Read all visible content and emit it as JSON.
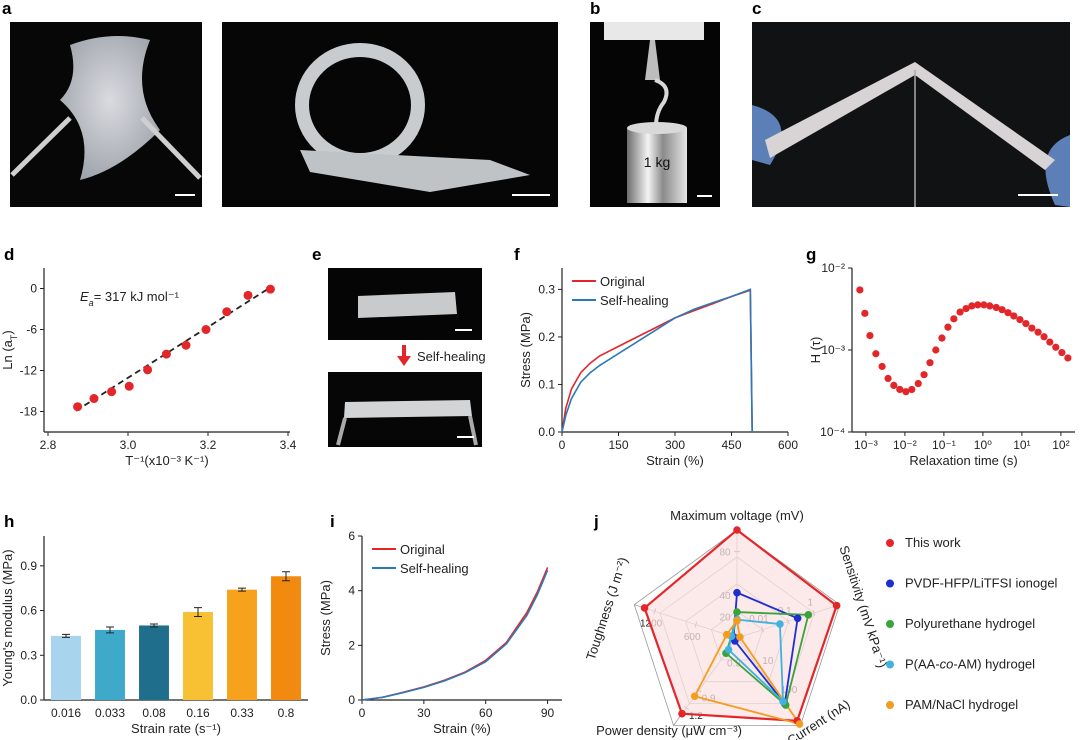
{
  "photos": [
    {
      "panel": "a"
    },
    {
      "panel": "b",
      "caption": "1 kg"
    },
    {
      "panel": "c"
    },
    {
      "panel": "e",
      "caption": "Self-healing"
    }
  ],
  "chart_data": [
    {
      "type": "scatter",
      "panel": "d",
      "x_label": "T⁻¹(x10⁻³ K⁻¹)",
      "y_label": [
        "Ln (a",
        "T",
        ")"
      ],
      "annotation": [
        "E",
        "a",
        "= 317 kJ mol⁻¹"
      ],
      "x": [
        2.874,
        2.915,
        2.959,
        3.003,
        3.049,
        3.096,
        3.145,
        3.195,
        3.247,
        3.3,
        3.356
      ],
      "values": [
        -17.3,
        -16.1,
        -15.1,
        -14.3,
        -11.9,
        -9.6,
        -8.3,
        -6.0,
        -3.4,
        -1.0,
        -0.1
      ],
      "color": "#e3262a",
      "fit": {
        "x": [
          2.87,
          3.36
        ],
        "values": [
          -17.9,
          0.3
        ],
        "color": "#222"
      },
      "xlim": [
        2.79,
        3.405
      ],
      "ylim": [
        -21,
        3
      ],
      "xticks": [
        2.8,
        {
          "value": 3,
          "label": "3.0"
        },
        3.2,
        3.4
      ],
      "yticks": [
        0,
        -6,
        -12,
        -18
      ]
    },
    {
      "type": "line",
      "panel": "f",
      "x_label": "Strain (%)",
      "y_label": "Stress (MPa)",
      "x": [
        0,
        10,
        25,
        50,
        75,
        100,
        150,
        200,
        250,
        300,
        350,
        400,
        450,
        500,
        505
      ],
      "series": [
        {
          "name": "Original",
          "color": "#e3262a",
          "values": [
            0,
            0.05,
            0.09,
            0.125,
            0.145,
            0.16,
            0.18,
            0.2,
            0.22,
            0.24,
            0.255,
            0.27,
            0.285,
            0.298,
            0
          ]
        },
        {
          "name": "Self-healing",
          "color": "#2a7ab8",
          "values": [
            0,
            0.035,
            0.07,
            0.105,
            0.125,
            0.14,
            0.165,
            0.19,
            0.215,
            0.24,
            0.258,
            0.272,
            0.285,
            0.3,
            0
          ]
        }
      ],
      "xlim": [
        0,
        600
      ],
      "ylim": [
        0,
        0.345
      ],
      "xticks": [
        0,
        150,
        300,
        450,
        600
      ],
      "yticks": [
        {
          "value": 0,
          "label": "0.0"
        },
        0.1,
        0.2,
        0.3
      ]
    },
    {
      "type": "scatter",
      "panel": "g",
      "x_label": "Relaxation time (s)",
      "y_label": "H (τ)",
      "x": [
        0.0007,
        0.00094,
        0.00127,
        0.0018,
        0.0026,
        0.0037,
        0.0052,
        0.0074,
        0.0106,
        0.015,
        0.022,
        0.031,
        0.044,
        0.062,
        0.089,
        0.127,
        0.18,
        0.26,
        0.37,
        0.52,
        0.74,
        1.06,
        1.5,
        2.2,
        3.1,
        4.4,
        6.2,
        8.9,
        12.7,
        18,
        26,
        37,
        52,
        74,
        106,
        151
      ],
      "values": [
        0.0054,
        0.0028,
        0.0015,
        0.0009,
        0.00063,
        0.00045,
        0.00037,
        0.00033,
        0.00031,
        0.00033,
        0.00039,
        0.0005,
        0.0007,
        0.001,
        0.0014,
        0.0019,
        0.0024,
        0.0029,
        0.0032,
        0.00345,
        0.00355,
        0.00355,
        0.00345,
        0.0033,
        0.0031,
        0.00285,
        0.0026,
        0.00235,
        0.0021,
        0.00185,
        0.00165,
        0.00145,
        0.00125,
        0.00108,
        0.00093,
        0.0008
      ],
      "color": "#e3262a",
      "xscale": "log",
      "yscale": "log",
      "xlim": [
        0.00044,
        230
      ],
      "ylim": [
        0.0001,
        0.01
      ],
      "xticks": [
        {
          "value": 0.001,
          "label": "10⁻³"
        },
        {
          "value": 0.01,
          "label": "10⁻²"
        },
        {
          "value": 0.1,
          "label": "10⁻¹"
        },
        {
          "value": 1,
          "label": "10⁰"
        },
        {
          "value": 10,
          "label": "10¹"
        },
        {
          "value": 100,
          "label": "10²"
        }
      ],
      "yticks": [
        {
          "value": 0.0001,
          "label": "10⁻⁴"
        },
        {
          "value": 0.001,
          "label": "10⁻³"
        },
        {
          "value": 0.01,
          "label": "10⁻²"
        }
      ]
    },
    {
      "type": "bar",
      "panel": "h",
      "x_label": "Strain rate (s⁻¹)",
      "y_label": "Young's modulus (MPa)",
      "categories": [
        "0.016",
        "0.033",
        "0.08",
        "0.16",
        "0.33",
        "0.8"
      ],
      "values": [
        0.43,
        0.47,
        0.5,
        0.59,
        0.74,
        0.83
      ],
      "errors": [
        0.01,
        0.02,
        0.01,
        0.03,
        0.01,
        0.03
      ],
      "colors": [
        "#a8d4ee",
        "#3fa9c9",
        "#1f6e8c",
        "#f7c133",
        "#f7a21c",
        "#f28a0f"
      ],
      "ylim": [
        0,
        1.1
      ],
      "yticks": [
        {
          "value": 0,
          "label": "0.0"
        },
        0.3,
        0.6,
        0.9
      ]
    },
    {
      "type": "line",
      "panel": "i",
      "x_label": "Strain (%)",
      "y_label": "Stress (MPa)",
      "x": [
        0,
        10,
        20,
        30,
        40,
        50,
        60,
        70,
        80,
        85,
        90
      ],
      "series": [
        {
          "name": "Original",
          "color": "#e3262a",
          "values": [
            0,
            0.1,
            0.28,
            0.48,
            0.72,
            1.02,
            1.45,
            2.1,
            3.2,
            3.95,
            4.85
          ]
        },
        {
          "name": "Self-healing",
          "color": "#2a7ab8",
          "values": [
            0,
            0.1,
            0.27,
            0.46,
            0.7,
            1.0,
            1.4,
            2.05,
            3.1,
            3.85,
            4.75
          ]
        }
      ],
      "xlim": [
        0,
        97
      ],
      "ylim": [
        0,
        6
      ],
      "xticks": [
        0,
        30,
        60,
        90
      ],
      "yticks": [
        0,
        2,
        4,
        6
      ]
    },
    {
      "type": "radar",
      "panel": "j",
      "axes": [
        {
          "name": "Maximum voltage (mV)",
          "lim": [
            0,
            100
          ],
          "ticks": [
            20,
            40,
            80
          ]
        },
        {
          "name": "Sensitivity (mV kPa⁻¹)",
          "lim": [
            0.001,
            10
          ],
          "scale": "log",
          "ticks": [
            0.01,
            0.1,
            1
          ]
        },
        {
          "name": "Current (nA)",
          "lim": [
            1,
            1000
          ],
          "scale": "log",
          "ticks": [
            10,
            100
          ]
        },
        {
          "name": "Power density (μW cm⁻³)",
          "lim": [
            0,
            1.5
          ],
          "ticks": [
            0.3,
            0.9,
            1.2
          ]
        },
        {
          "name": "Toughness (J m⁻²)",
          "lim": [
            0,
            1500
          ],
          "ticks": [
            600,
            1200
          ]
        }
      ],
      "series": [
        {
          "name": "This work",
          "color": "#e3262a",
          "fill": "#fbe1e3",
          "values": [
            100,
            7.6,
            700,
            1.3,
            1350
          ]
        },
        {
          "name": "PVDF-HFP/LiTFSI ionogel",
          "color": "#1d2fd1",
          "values": [
            42,
            0.23,
            180,
            0.05,
            50
          ]
        },
        {
          "name": "Polyurethane hydrogel",
          "color": "#3aa33c",
          "values": [
            24,
            0.6,
            200,
            0.26,
            80
          ]
        },
        {
          "name": [
            "P(AA-",
            "co",
            "-AM) hydrogel"
          ],
          "color": "#3eb3df",
          "values": [
            17,
            0.047,
            150,
            0.2,
            80
          ]
        },
        {
          "name": "PAM/NaCl hydrogel",
          "color": "#f39c1f",
          "values": [
            16,
            0.0013,
            900,
            1.0,
            150
          ]
        }
      ]
    }
  ]
}
